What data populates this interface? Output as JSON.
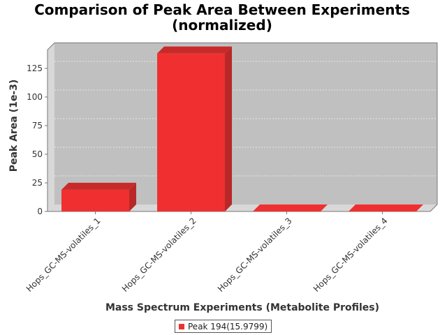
{
  "chart_data": {
    "type": "bar",
    "title_line1": "Comparison of Peak Area Between Experiments",
    "title_line2": "(normalized)",
    "xlabel": "Mass Spectrum Experiments (Metabolite Profiles)",
    "ylabel": "Peak Area (1e-3)",
    "categories": [
      "Hops_GC-MS-volatiles_1",
      "Hops_GC-MS-volatiles_2",
      "Hops_GC-MS-volatiles_3",
      "Hops_GC-MS-volatiles_4"
    ],
    "series": [
      {
        "name": "Peak 194(15.9799)",
        "values": [
          19,
          138,
          0,
          0
        ],
        "color": "#f03030"
      }
    ],
    "yticks": [
      0,
      25,
      50,
      75,
      100,
      125
    ],
    "ylim": [
      0,
      140
    ],
    "grid": true,
    "legend_position": "bottom"
  }
}
